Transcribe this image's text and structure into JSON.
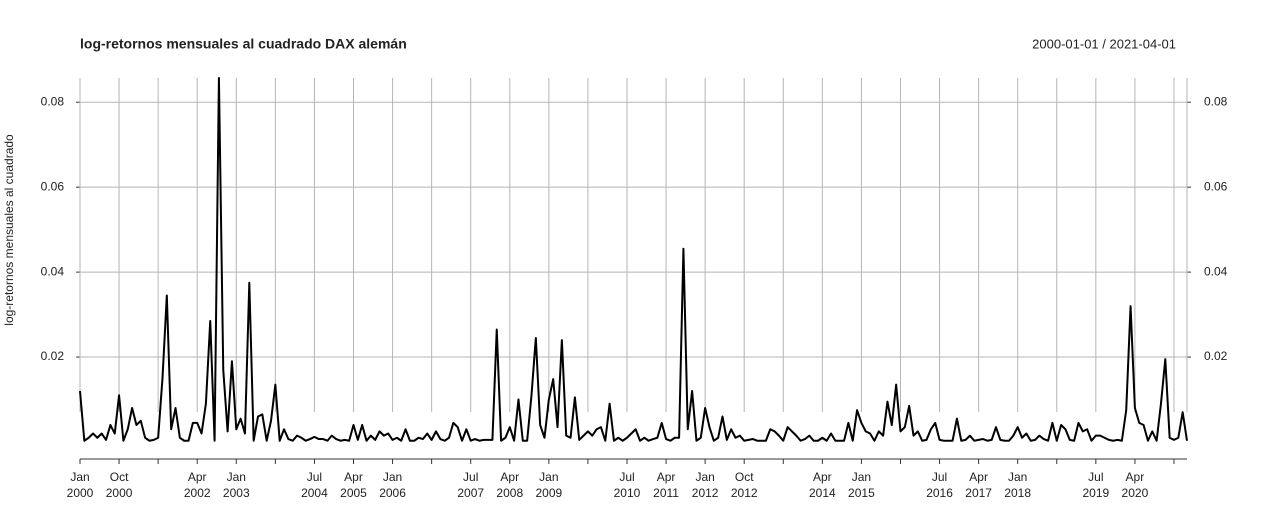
{
  "chart_data": {
    "type": "line",
    "title": "log-retornos mensuales al cuadrado DAX alemán",
    "subtitle": "2000-01-01 / 2021-04-01",
    "y_label": "log-retornos mensuales al cuadrado",
    "x": [
      "2000-01",
      "2000-02",
      "2000-03",
      "2000-04",
      "2000-05",
      "2000-06",
      "2000-07",
      "2000-08",
      "2000-09",
      "2000-10",
      "2000-11",
      "2000-12",
      "2001-01",
      "2001-02",
      "2001-03",
      "2001-04",
      "2001-05",
      "2001-06",
      "2001-07",
      "2001-08",
      "2001-09",
      "2001-10",
      "2001-11",
      "2001-12",
      "2002-01",
      "2002-02",
      "2002-03",
      "2002-04",
      "2002-05",
      "2002-06",
      "2002-07",
      "2002-08",
      "2002-09",
      "2002-10",
      "2002-11",
      "2002-12",
      "2003-01",
      "2003-02",
      "2003-03",
      "2003-04",
      "2003-05",
      "2003-06",
      "2003-07",
      "2003-08",
      "2003-09",
      "2003-10",
      "2003-11",
      "2003-12",
      "2004-01",
      "2004-02",
      "2004-03",
      "2004-04",
      "2004-05",
      "2004-06",
      "2004-07",
      "2004-08",
      "2004-09",
      "2004-10",
      "2004-11",
      "2004-12",
      "2005-01",
      "2005-02",
      "2005-03",
      "2005-04",
      "2005-05",
      "2005-06",
      "2005-07",
      "2005-08",
      "2005-09",
      "2005-10",
      "2005-11",
      "2005-12",
      "2006-01",
      "2006-02",
      "2006-03",
      "2006-04",
      "2006-05",
      "2006-06",
      "2006-07",
      "2006-08",
      "2006-09",
      "2006-10",
      "2006-11",
      "2006-12",
      "2007-01",
      "2007-02",
      "2007-03",
      "2007-04",
      "2007-05",
      "2007-06",
      "2007-07",
      "2007-08",
      "2007-09",
      "2007-10",
      "2007-11",
      "2007-12",
      "2008-01",
      "2008-02",
      "2008-03",
      "2008-04",
      "2008-05",
      "2008-06",
      "2008-07",
      "2008-08",
      "2008-09",
      "2008-10",
      "2008-11",
      "2008-12",
      "2009-01",
      "2009-02",
      "2009-03",
      "2009-04",
      "2009-05",
      "2009-06",
      "2009-07",
      "2009-08",
      "2009-09",
      "2009-10",
      "2009-11",
      "2009-12",
      "2010-01",
      "2010-02",
      "2010-03",
      "2010-04",
      "2010-05",
      "2010-06",
      "2010-07",
      "2010-08",
      "2010-09",
      "2010-10",
      "2010-11",
      "2010-12",
      "2011-01",
      "2011-02",
      "2011-03",
      "2011-04",
      "2011-05",
      "2011-06",
      "2011-07",
      "2011-08",
      "2011-09",
      "2011-10",
      "2011-11",
      "2011-12",
      "2012-01",
      "2012-02",
      "2012-03",
      "2012-04",
      "2012-05",
      "2012-06",
      "2012-07",
      "2012-08",
      "2012-09",
      "2012-10",
      "2012-11",
      "2012-12",
      "2013-01",
      "2013-02",
      "2013-03",
      "2013-04",
      "2013-05",
      "2013-06",
      "2013-07",
      "2013-08",
      "2013-09",
      "2013-10",
      "2013-11",
      "2013-12",
      "2014-01",
      "2014-02",
      "2014-03",
      "2014-04",
      "2014-05",
      "2014-06",
      "2014-07",
      "2014-08",
      "2014-09",
      "2014-10",
      "2014-11",
      "2014-12",
      "2015-01",
      "2015-02",
      "2015-03",
      "2015-04",
      "2015-05",
      "2015-06",
      "2015-07",
      "2015-08",
      "2015-09",
      "2015-10",
      "2015-11",
      "2015-12",
      "2016-01",
      "2016-02",
      "2016-03",
      "2016-04",
      "2016-05",
      "2016-06",
      "2016-07",
      "2016-08",
      "2016-09",
      "2016-10",
      "2016-11",
      "2016-12",
      "2017-01",
      "2017-02",
      "2017-03",
      "2017-04",
      "2017-05",
      "2017-06",
      "2017-07",
      "2017-08",
      "2017-09",
      "2017-10",
      "2017-11",
      "2017-12",
      "2018-01",
      "2018-02",
      "2018-03",
      "2018-04",
      "2018-05",
      "2018-06",
      "2018-07",
      "2018-08",
      "2018-09",
      "2018-10",
      "2018-11",
      "2018-12",
      "2019-01",
      "2019-02",
      "2019-03",
      "2019-04",
      "2019-05",
      "2019-06",
      "2019-07",
      "2019-08",
      "2019-09",
      "2019-10",
      "2019-11",
      "2019-12",
      "2020-01",
      "2020-02",
      "2020-03",
      "2020-04",
      "2020-05",
      "2020-06",
      "2020-07",
      "2020-08",
      "2020-09",
      "2020-10",
      "2020-11",
      "2020-12",
      "2021-01",
      "2021-02",
      "2021-03",
      "2021-04"
    ],
    "values": [
      0.012,
      0.0003,
      0.001,
      0.002,
      0.001,
      0.002,
      0.0005,
      0.004,
      0.002,
      0.011,
      0.0003,
      0.003,
      0.008,
      0.004,
      0.005,
      0.001,
      0.0003,
      0.0005,
      0.001,
      0.015,
      0.0345,
      0.003,
      0.008,
      0.001,
      0.0003,
      0.0003,
      0.0045,
      0.0045,
      0.002,
      0.009,
      0.0285,
      0.0003,
      0.0857,
      0.017,
      0.0025,
      0.019,
      0.003,
      0.0055,
      0.002,
      0.0375,
      0.0003,
      0.006,
      0.0065,
      0.0003,
      0.005,
      0.0135,
      0.0003,
      0.003,
      0.0007,
      0.0003,
      0.0015,
      0.001,
      0.0003,
      0.0007,
      0.0012,
      0.0007,
      0.0007,
      0.0003,
      0.0015,
      0.0007,
      0.0003,
      0.0005,
      0.0003,
      0.004,
      0.0005,
      0.004,
      0.0003,
      0.0015,
      0.0005,
      0.0025,
      0.0015,
      0.002,
      0.0005,
      0.001,
      0.0003,
      0.003,
      0.0003,
      0.0003,
      0.001,
      0.0007,
      0.002,
      0.0005,
      0.0025,
      0.0007,
      0.0003,
      0.001,
      0.0045,
      0.0035,
      0.0003,
      0.003,
      0.0003,
      0.0007,
      0.0003,
      0.0005,
      0.0005,
      0.0005,
      0.0265,
      0.0003,
      0.001,
      0.0035,
      0.0003,
      0.01,
      0.0003,
      0.0003,
      0.011,
      0.0245,
      0.004,
      0.001,
      0.01,
      0.0148,
      0.0035,
      0.024,
      0.0015,
      0.001,
      0.0105,
      0.0005,
      0.0015,
      0.0025,
      0.0015,
      0.003,
      0.0035,
      0.0003,
      0.009,
      0.0003,
      0.001,
      0.0003,
      0.001,
      0.002,
      0.003,
      0.0003,
      0.001,
      0.0003,
      0.0007,
      0.001,
      0.0045,
      0.0007,
      0.0003,
      0.001,
      0.001,
      0.0455,
      0.003,
      0.012,
      0.0003,
      0.001,
      0.008,
      0.0035,
      0.0003,
      0.001,
      0.006,
      0.0005,
      0.003,
      0.001,
      0.0015,
      0.0003,
      0.0005,
      0.0007,
      0.0003,
      0.0003,
      0.0003,
      0.003,
      0.0025,
      0.0015,
      0.0003,
      0.0035,
      0.0025,
      0.0015,
      0.0003,
      0.0007,
      0.0015,
      0.0003,
      0.0003,
      0.001,
      0.0003,
      0.002,
      0.0003,
      0.0003,
      0.0003,
      0.0045,
      0.0003,
      0.0075,
      0.0045,
      0.0025,
      0.002,
      0.0003,
      0.0025,
      0.0015,
      0.0095,
      0.004,
      0.0135,
      0.0025,
      0.0035,
      0.0085,
      0.0015,
      0.0025,
      0.0003,
      0.0005,
      0.003,
      0.0045,
      0.0005,
      0.0003,
      0.0003,
      0.0003,
      0.0055,
      0.0003,
      0.0005,
      0.0015,
      0.0003,
      0.0005,
      0.0007,
      0.0003,
      0.0005,
      0.0035,
      0.0005,
      0.0003,
      0.0003,
      0.0015,
      0.0035,
      0.001,
      0.002,
      0.0003,
      0.0005,
      0.0015,
      0.0007,
      0.0003,
      0.0045,
      0.0003,
      0.004,
      0.003,
      0.0005,
      0.0003,
      0.0045,
      0.0025,
      0.003,
      0.0003,
      0.0015,
      0.0015,
      0.001,
      0.0005,
      0.0003,
      0.0005,
      0.0003,
      0.0075,
      0.032,
      0.008,
      0.0045,
      0.004,
      0.0003,
      0.0025,
      0.0003,
      0.009,
      0.0195,
      0.001,
      0.0005,
      0.001,
      0.007,
      0.0003
    ],
    "color": "#000000",
    "xlim": [
      "2000-01",
      "2021-04"
    ],
    "ylim": [
      -0.004,
      0.0857
    ],
    "yticks": [
      0.02,
      0.04,
      0.06,
      0.08
    ],
    "xticks": [
      {
        "value": "2000-01",
        "label": "Jan 2000"
      },
      {
        "value": "2000-10",
        "label": "Oct 2000"
      },
      {
        "value": "2001-07",
        "label": null
      },
      {
        "value": "2002-04",
        "label": "Apr 2002"
      },
      {
        "value": "2003-01",
        "label": "Jan 2003"
      },
      {
        "value": "2003-10",
        "label": null
      },
      {
        "value": "2004-07",
        "label": "Jul 2004"
      },
      {
        "value": "2005-04",
        "label": "Apr 2005"
      },
      {
        "value": "2006-01",
        "label": "Jan 2006"
      },
      {
        "value": "2006-10",
        "label": null
      },
      {
        "value": "2007-07",
        "label": "Jul 2007"
      },
      {
        "value": "2008-04",
        "label": "Apr 2008"
      },
      {
        "value": "2009-01",
        "label": "Jan 2009"
      },
      {
        "value": "2009-10",
        "label": null
      },
      {
        "value": "2010-07",
        "label": "Jul 2010"
      },
      {
        "value": "2011-04",
        "label": "Apr 2011"
      },
      {
        "value": "2012-01",
        "label": "Jan 2012"
      },
      {
        "value": "2012-10",
        "label": "Oct 2012"
      },
      {
        "value": "2013-07",
        "label": null
      },
      {
        "value": "2014-04",
        "label": "Apr 2014"
      },
      {
        "value": "2015-01",
        "label": "Jan 2015"
      },
      {
        "value": "2015-10",
        "label": null
      },
      {
        "value": "2016-07",
        "label": "Jul 2016"
      },
      {
        "value": "2017-04",
        "label": "Apr 2017"
      },
      {
        "value": "2018-01",
        "label": "Jan 2018"
      },
      {
        "value": "2018-10",
        "label": null
      },
      {
        "value": "2019-07",
        "label": "Jul 2019"
      },
      {
        "value": "2020-04",
        "label": "Apr 2020"
      },
      {
        "value": "2021-01",
        "label": null
      }
    ],
    "grid": true
  }
}
